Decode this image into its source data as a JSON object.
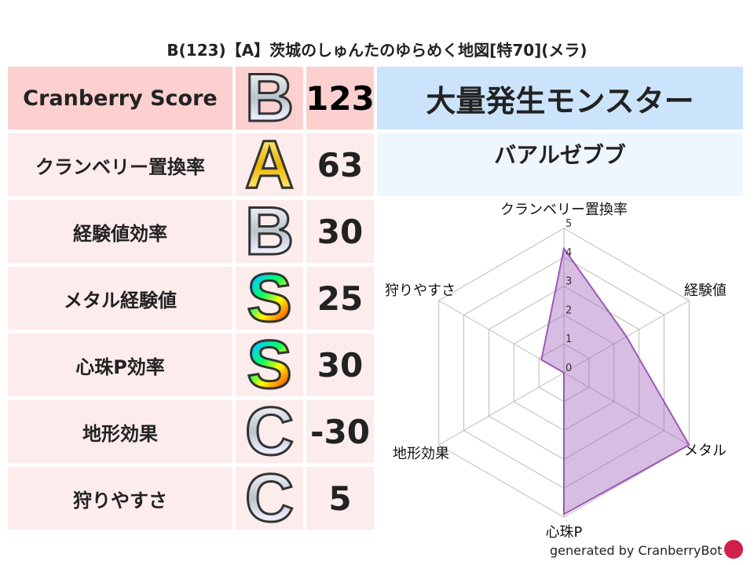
{
  "title": "B(123)【A】茨城のしゅんたのゆらめく地図[特70](メラ)",
  "rows": [
    {
      "label": "Cranberry Score",
      "grade": "B",
      "value": "123"
    },
    {
      "label": "クランベリー置換率",
      "grade": "A",
      "value": "63"
    },
    {
      "label": "経験値効率",
      "grade": "B",
      "value": "30"
    },
    {
      "label": "メタル経験値",
      "grade": "S",
      "value": "25"
    },
    {
      "label": "心珠P効率",
      "grade": "S",
      "value": "30"
    },
    {
      "label": "地形効果",
      "grade": "C",
      "value": "-30"
    },
    {
      "label": "狩りやすさ",
      "grade": "C",
      "value": "5"
    }
  ],
  "monster_header": "大量発生モンスター",
  "monster_name": "バアルゼブブ",
  "footer": "generated by CranberryBot",
  "chart_data": {
    "type": "radar",
    "axes": [
      "クランベリー置換率",
      "経験値",
      "メタル",
      "心珠P",
      "地形効果",
      "狩りやすさ"
    ],
    "values": [
      4.3,
      2.5,
      5,
      4.9,
      0,
      0.9
    ],
    "range": [
      0,
      5
    ],
    "ticks": [
      "0",
      "1",
      "2",
      "3",
      "4",
      "5"
    ],
    "color": "#9b59b6"
  }
}
